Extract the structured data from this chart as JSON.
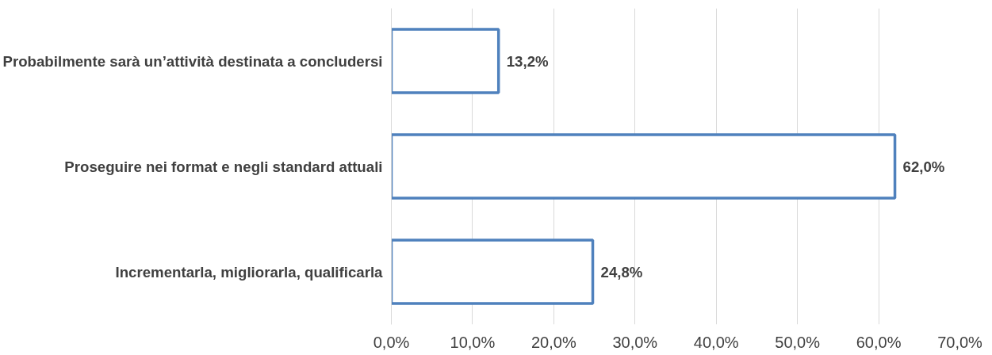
{
  "chart_data": {
    "type": "bar",
    "orientation": "horizontal",
    "categories": [
      "Probabilmente sarà un’attività destinata a concludersi",
      "Proseguire nei format e negli standard attuali",
      "Incrementarla, migliorarla, qualificarla"
    ],
    "values": [
      13.2,
      62.0,
      24.8
    ],
    "value_labels": [
      "13,2%",
      "62,0%",
      "24,8%"
    ],
    "color": "#4f81bd",
    "xlim": [
      0,
      70
    ],
    "xticks": [
      {
        "value": 0,
        "label": "0,0%"
      },
      {
        "value": 10,
        "label": "10,0%"
      },
      {
        "value": 20,
        "label": "20,0%"
      },
      {
        "value": 30,
        "label": "30,0%"
      },
      {
        "value": 40,
        "label": "40,0%"
      },
      {
        "value": 50,
        "label": "50,0%"
      },
      {
        "value": 60,
        "label": "60,0%"
      },
      {
        "value": 70,
        "label": "70,0%"
      }
    ],
    "grid": "x"
  }
}
